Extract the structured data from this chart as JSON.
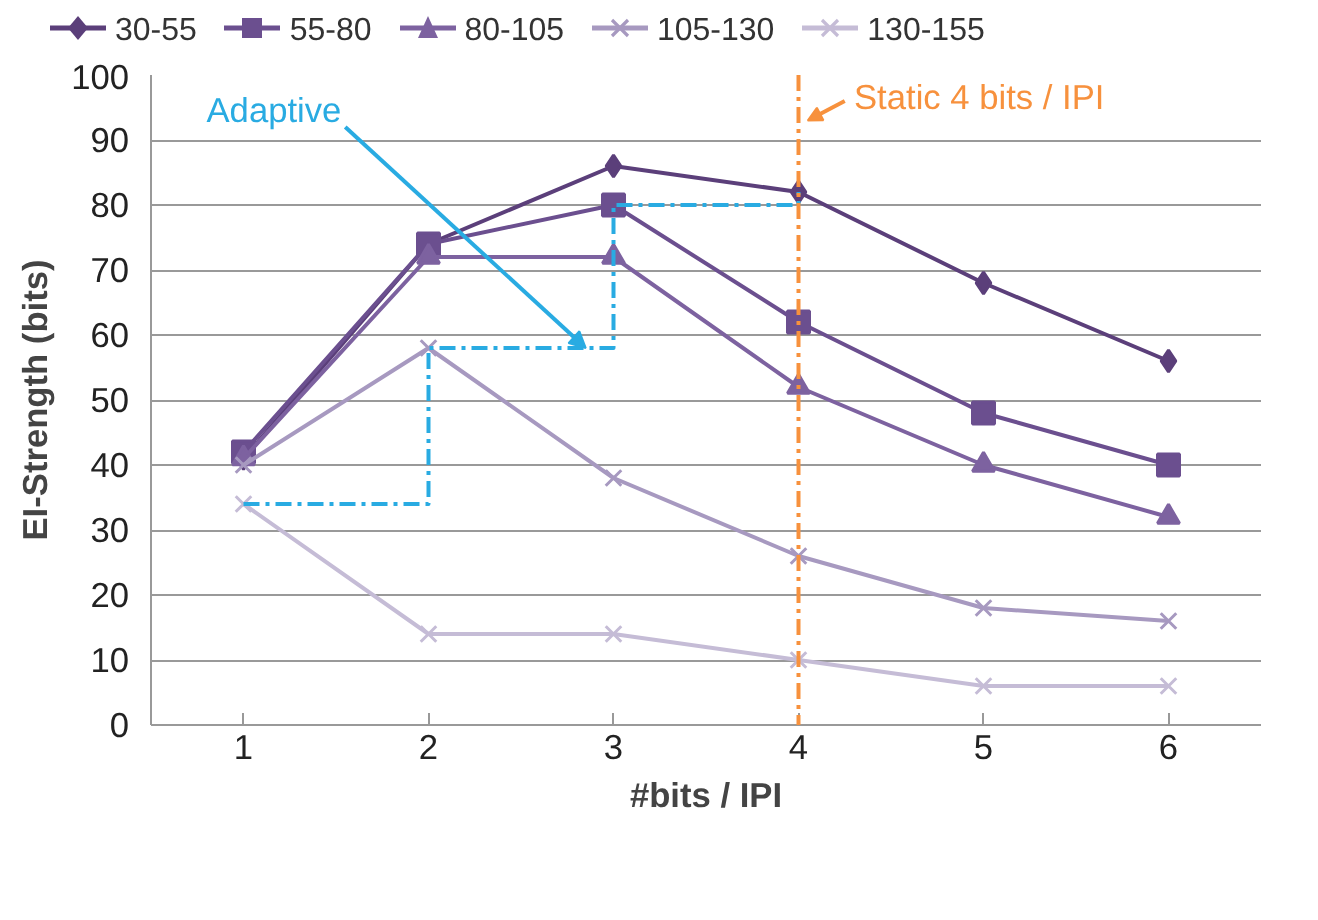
{
  "chart_data": {
    "type": "line",
    "xlabel": "#bits / IPI",
    "ylabel": "EI-Strength (bits)",
    "x": [
      1,
      2,
      3,
      4,
      5,
      6
    ],
    "xlim": [
      0.5,
      6.5
    ],
    "xticks": [
      1,
      2,
      3,
      4,
      5,
      6
    ],
    "ylim": [
      0,
      100
    ],
    "yticks": [
      0,
      10,
      20,
      30,
      40,
      50,
      60,
      70,
      80,
      90,
      100
    ],
    "grid": "y",
    "legend": "top",
    "series": [
      {
        "name": "30-55",
        "color": "#5b3f7a",
        "marker": "diamond",
        "values": [
          41,
          74,
          86,
          82,
          68,
          56
        ]
      },
      {
        "name": "55-80",
        "color": "#6b4f8f",
        "marker": "square",
        "values": [
          42,
          74,
          80,
          62,
          48,
          40
        ]
      },
      {
        "name": "80-105",
        "color": "#7d62a0",
        "marker": "triangle",
        "values": [
          41,
          72,
          72,
          52,
          40,
          32
        ]
      },
      {
        "name": "105-130",
        "color": "#a799c0",
        "marker": "cross",
        "values": [
          40,
          58,
          38,
          26,
          18,
          16
        ]
      },
      {
        "name": "130-155",
        "color": "#c5bcd6",
        "marker": "cross",
        "values": [
          34,
          14,
          14,
          10,
          6,
          6
        ]
      },
      {
        "name": "Adaptive",
        "type": "step",
        "color": "#29abe2",
        "marker": "none",
        "line_style": "dashed",
        "x": [
          1,
          2,
          3,
          4
        ],
        "values": [
          34,
          58,
          80,
          82
        ]
      }
    ],
    "ref_lines": [
      {
        "axis": "x",
        "value": 4,
        "label": "Static 4 bits / IPI",
        "color": "#f7913d",
        "line_style": "dashed"
      }
    ]
  }
}
